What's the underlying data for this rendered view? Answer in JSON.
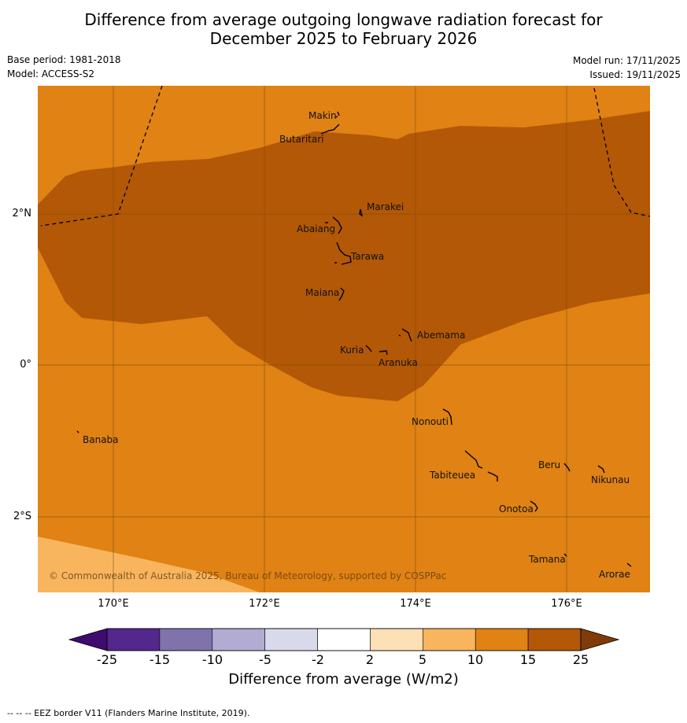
{
  "header": {
    "title_line1": "Difference from average outgoing longwave radiation forecast for",
    "title_line2": "December 2025 to February 2026",
    "base_period": "Base period: 1981-2018",
    "model": "Model: ACCESS-S2",
    "model_run": "Model run: 17/11/2025",
    "issued": "Issued: 19/11/2025"
  },
  "map": {
    "lat_labels": [
      "2°N",
      "0°",
      "2°S"
    ],
    "lon_labels": [
      "170°E",
      "172°E",
      "174°E",
      "176°E"
    ],
    "places": [
      "Makin",
      "Butaritari",
      "Marakei",
      "Abaiang",
      "Tarawa",
      "Maiana",
      "Abemama",
      "Kuria",
      "Aranuka",
      "Nonouti",
      "Banaba",
      "Beru",
      "Nikunau",
      "Tabiteuea",
      "Onotoa",
      "Tamana",
      "Arorae"
    ],
    "copyright": "© Commonwealth of Australia 2025, Bureau of Meteorology, supported by COSPPac"
  },
  "colorbar": {
    "ticks": [
      "-25",
      "-15",
      "-10",
      "-5",
      "-2",
      "2",
      "5",
      "10",
      "15",
      "25"
    ],
    "colors": [
      "#3f0b6e",
      "#54278f",
      "#8073ac",
      "#b2abd2",
      "#d8daeb",
      "#ffffff",
      "#fee0b6",
      "#f8b55e",
      "#e08214",
      "#b35806",
      "#7f3b08"
    ],
    "title": "Difference from average (W/m2)"
  },
  "footer": {
    "note": "--  --  -- EEZ border V11 (Flanders Marine Institute, 2019)."
  }
}
